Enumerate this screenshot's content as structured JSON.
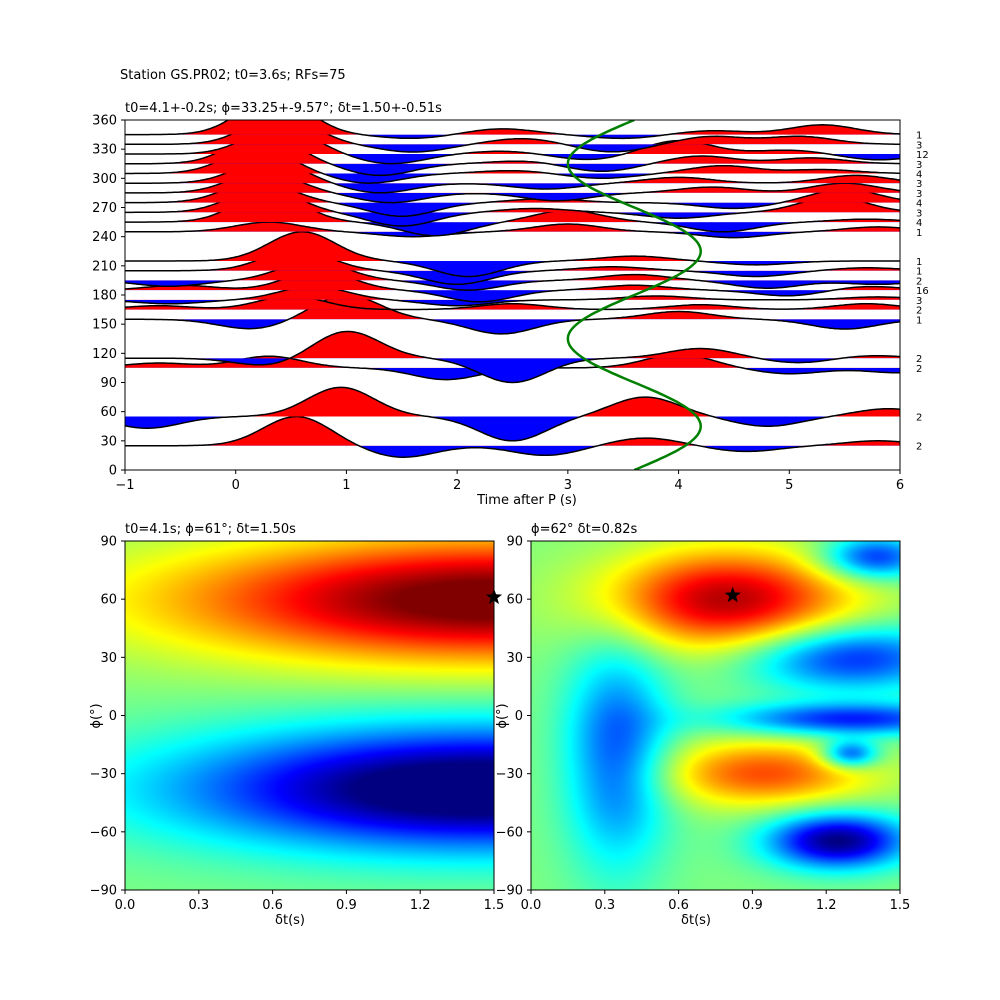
{
  "figure": {
    "suptitle": "Station GS.PR02; t0=3.6s; RFs=75"
  },
  "chart_data": [
    {
      "type": "line",
      "panel": "receiver-functions",
      "title": "t0=4.1+-0.2s; ϕ=33.25+-9.57°; δt=1.50+-0.51s",
      "xlabel": "Time after P (s)",
      "ylabel": "",
      "xlim": [
        -1,
        6
      ],
      "ylim": [
        0,
        360
      ],
      "xticks": [
        -1,
        0,
        1,
        2,
        3,
        4,
        5,
        6
      ],
      "yticks": [
        0,
        30,
        60,
        90,
        120,
        150,
        180,
        210,
        240,
        270,
        300,
        330,
        360
      ],
      "positive_fill_color": "#ff0000",
      "negative_fill_color": "#0000ff",
      "trace_color": "#000000",
      "traces": [
        {
          "baz": 25,
          "count": "2",
          "peaks": [
            [
              0.55,
              30
            ],
            [
              1.5,
              -12
            ],
            [
              2.8,
              -10
            ],
            [
              3.7,
              8
            ],
            [
              4.6,
              -6
            ],
            [
              5.8,
              5
            ]
          ]
        },
        {
          "baz": 55,
          "count": "2",
          "peaks": [
            [
              -0.8,
              -12
            ],
            [
              0.95,
              30
            ],
            [
              2.5,
              -25
            ],
            [
              3.7,
              20
            ],
            [
              4.8,
              -10
            ],
            [
              5.9,
              8
            ]
          ]
        },
        {
          "baz": 105,
          "count": "2",
          "peaks": [
            [
              -0.7,
              5
            ],
            [
              0.3,
              12
            ],
            [
              1.9,
              -12
            ],
            [
              4.0,
              14
            ],
            [
              5.0,
              -6
            ],
            [
              6.0,
              -5
            ]
          ]
        },
        {
          "baz": 115,
          "count": "2",
          "peaks": [
            [
              0.3,
              -8
            ],
            [
              1.0,
              28
            ],
            [
              2.5,
              -25
            ],
            [
              4.2,
              10
            ],
            [
              5.1,
              -5
            ],
            [
              5.7,
              3
            ]
          ]
        },
        {
          "baz": 155,
          "count": "1",
          "peaks": [
            [
              0.15,
              -10
            ],
            [
              1.0,
              25
            ],
            [
              2.4,
              -15
            ],
            [
              4.0,
              8
            ],
            [
              5.5,
              -10
            ]
          ]
        },
        {
          "baz": 165,
          "count": "2",
          "peaks": [
            [
              -0.7,
              4
            ],
            [
              0.5,
              14
            ],
            [
              2.5,
              6
            ],
            [
              4.2,
              5
            ],
            [
              5.7,
              6
            ]
          ]
        },
        {
          "baz": 175,
          "count": "3",
          "peaks": [
            [
              -0.6,
              -4
            ],
            [
              0.7,
              14
            ],
            [
              2.0,
              -6
            ],
            [
              3.8,
              4
            ],
            [
              5.8,
              3
            ]
          ]
        },
        {
          "baz": 185,
          "count": "16",
          "peaks": [
            [
              -0.5,
              5
            ],
            [
              0.75,
              20
            ],
            [
              2.2,
              -12
            ],
            [
              3.6,
              5
            ],
            [
              5.0,
              -6
            ],
            [
              5.7,
              4
            ]
          ]
        },
        {
          "baz": 195,
          "count": "2",
          "peaks": [
            [
              -0.6,
              -6
            ],
            [
              0.7,
              20
            ],
            [
              2.1,
              -10
            ],
            [
              3.6,
              6
            ],
            [
              4.8,
              -8
            ],
            [
              5.8,
              -4
            ]
          ]
        },
        {
          "baz": 205,
          "count": "1",
          "peaks": [
            [
              0.55,
              22
            ],
            [
              2.0,
              -14
            ],
            [
              3.4,
              4
            ],
            [
              4.7,
              -6
            ],
            [
              5.7,
              3
            ]
          ]
        },
        {
          "baz": 215,
          "count": "1",
          "peaks": [
            [
              0.6,
              30
            ],
            [
              2.1,
              -16
            ],
            [
              3.6,
              5
            ],
            [
              4.7,
              -4
            ]
          ]
        },
        {
          "baz": 245,
          "count": "1",
          "peaks": [
            [
              0.3,
              10
            ],
            [
              1.6,
              -5
            ],
            [
              3.0,
              8
            ],
            [
              4.5,
              -6
            ],
            [
              5.8,
              5
            ]
          ]
        },
        {
          "baz": 255,
          "count": "4",
          "peaks": [
            [
              0.3,
              30
            ],
            [
              1.8,
              -14
            ],
            [
              3.0,
              12
            ],
            [
              4.4,
              -10
            ],
            [
              5.7,
              3
            ]
          ]
        },
        {
          "baz": 265,
          "count": "3",
          "peaks": [
            [
              0.25,
              25
            ],
            [
              1.5,
              -14
            ],
            [
              2.7,
              4
            ],
            [
              4.0,
              -6
            ],
            [
              5.4,
              16
            ]
          ]
        },
        {
          "baz": 275,
          "count": "4",
          "peaks": [
            [
              0.2,
              22
            ],
            [
              1.5,
              -14
            ],
            [
              2.8,
              4
            ],
            [
              4.5,
              -6
            ],
            [
              5.5,
              14
            ]
          ]
        },
        {
          "baz": 285,
          "count": "3",
          "peaks": [
            [
              0.25,
              22
            ],
            [
              1.4,
              -10
            ],
            [
              2.9,
              -8
            ],
            [
              4.3,
              6
            ],
            [
              5.5,
              10
            ]
          ]
        },
        {
          "baz": 295,
          "count": "3",
          "peaks": [
            [
              0.3,
              24
            ],
            [
              1.3,
              -10
            ],
            [
              2.8,
              -6
            ],
            [
              4.0,
              6
            ],
            [
              5.6,
              8
            ]
          ]
        },
        {
          "baz": 305,
          "count": "4",
          "peaks": [
            [
              0.2,
              26
            ],
            [
              1.2,
              -10
            ],
            [
              2.5,
              3
            ],
            [
              3.3,
              -5
            ],
            [
              4.4,
              8
            ],
            [
              5.3,
              4
            ]
          ]
        },
        {
          "baz": 315,
          "count": "3",
          "peaks": [
            [
              0.25,
              30
            ],
            [
              1.3,
              -12
            ],
            [
              2.6,
              3
            ],
            [
              3.3,
              -8
            ],
            [
              4.2,
              8
            ],
            [
              5.2,
              6
            ]
          ]
        },
        {
          "baz": 325,
          "count": "12",
          "peaks": [
            [
              0.4,
              28
            ],
            [
              1.4,
              -10
            ],
            [
              2.4,
              3
            ],
            [
              3.2,
              -6
            ],
            [
              4.0,
              14
            ],
            [
              5.0,
              4
            ],
            [
              5.8,
              -6
            ]
          ]
        },
        {
          "baz": 335,
          "count": "3",
          "peaks": [
            [
              0.4,
              30
            ],
            [
              1.6,
              -8
            ],
            [
              2.6,
              6
            ],
            [
              3.4,
              -8
            ],
            [
              4.3,
              8
            ],
            [
              5.1,
              8
            ]
          ]
        },
        {
          "baz": 345,
          "count": "1",
          "peaks": [
            [
              0.35,
              40
            ],
            [
              1.6,
              -4
            ],
            [
              2.4,
              6
            ],
            [
              3.5,
              -4
            ],
            [
              4.3,
              4
            ],
            [
              5.3,
              10
            ]
          ]
        }
      ],
      "t0_curve": {
        "color": "#008000",
        "center": 3.6,
        "amplitude": 0.6,
        "period_baz": 180,
        "phase_deg": 0
      }
    },
    {
      "type": "heatmap",
      "panel": "energy-grid-left",
      "title": "t0=4.1s; ϕ=61°; δt=1.50s",
      "xlabel": "δt(s)",
      "ylabel": "ϕ(°)",
      "xlim": [
        0,
        1.5
      ],
      "ylim": [
        -90,
        90
      ],
      "xticks": [
        "0.0",
        "0.3",
        "0.6",
        "0.9",
        "1.2",
        "1.5"
      ],
      "yticks": [
        "−90",
        "−60",
        "−30",
        "0",
        "30",
        "60",
        "90"
      ],
      "colormap": "jet",
      "best": {
        "dt": 1.5,
        "phi": 61
      },
      "blobs": [
        {
          "dt": 1.5,
          "phi": 60,
          "amp": 0.55,
          "sdt": 0.9,
          "sphi": 22
        },
        {
          "dt": 1.45,
          "phi": -38,
          "amp": -0.6,
          "sdt": 0.85,
          "sphi": 22
        }
      ],
      "base": 0.5,
      "grad": 0.0
    },
    {
      "type": "heatmap",
      "panel": "energy-grid-right",
      "title": "ϕ=62° δt=0.82s",
      "xlabel": "δt(s)",
      "ylabel": "ϕ(°)",
      "xlim": [
        0,
        1.5
      ],
      "ylim": [
        -90,
        90
      ],
      "xticks": [
        "0.0",
        "0.3",
        "0.6",
        "0.9",
        "1.2",
        "1.5"
      ],
      "yticks": [
        "−90",
        "−60",
        "−30",
        "0",
        "30",
        "60",
        "90"
      ],
      "colormap": "jet",
      "best": {
        "dt": 0.82,
        "phi": 62
      },
      "blobs": [
        {
          "dt": 0.8,
          "phi": 60,
          "amp": 0.45,
          "sdt": 0.35,
          "sphi": 18
        },
        {
          "dt": 1.3,
          "phi": 30,
          "amp": -0.35,
          "sdt": 0.3,
          "sphi": 12
        },
        {
          "dt": 1.3,
          "phi": -2,
          "amp": -0.35,
          "sdt": 0.35,
          "sphi": 6
        },
        {
          "dt": 0.35,
          "phi": -20,
          "amp": -0.3,
          "sdt": 0.15,
          "sphi": 40
        },
        {
          "dt": 0.95,
          "phi": -30,
          "amp": 0.3,
          "sdt": 0.3,
          "sphi": 12
        },
        {
          "dt": 1.25,
          "phi": -65,
          "amp": -0.5,
          "sdt": 0.2,
          "sphi": 10
        },
        {
          "dt": 1.3,
          "phi": -20,
          "amp": -0.35,
          "sdt": 0.08,
          "sphi": 5
        },
        {
          "dt": 1.4,
          "phi": 82,
          "amp": -0.35,
          "sdt": 0.15,
          "sphi": 8
        }
      ],
      "base": 0.5,
      "grad": 0.0
    }
  ]
}
